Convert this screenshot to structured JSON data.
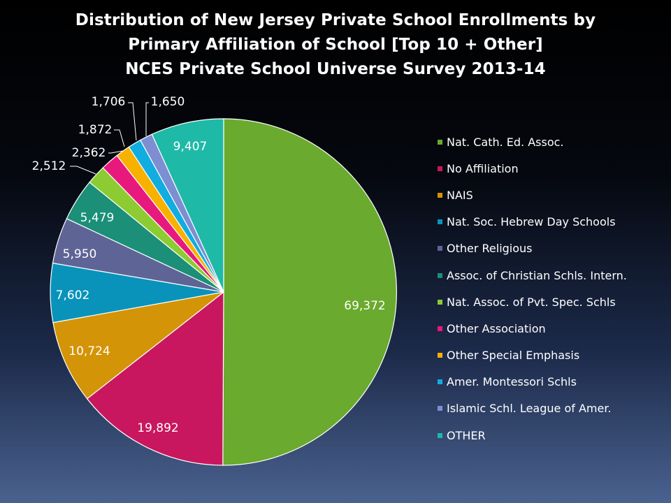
{
  "title": {
    "line1": "Distribution of New Jersey Private School Enrollments by",
    "line2": "Primary Affiliation of School [Top 10 + Other]",
    "line3": "NCES Private School Universe Survey 2013-14"
  },
  "chart_data": {
    "type": "pie",
    "title": "Distribution of New Jersey Private School Enrollments by Primary Affiliation of School [Top 10 + Other] NCES Private School Universe Survey 2013-14",
    "legend_position": "right",
    "slices": [
      {
        "name": "Nat. Cath. Ed. Assoc.",
        "value": 69372,
        "label": "69,372",
        "color": "#6aaa2e"
      },
      {
        "name": "No Affiliation",
        "value": 19892,
        "label": "19,892",
        "color": "#c8175e"
      },
      {
        "name": "NAIS",
        "value": 10724,
        "label": "10,724",
        "color": "#d49408"
      },
      {
        "name": "Nat. Soc. Hebrew Day Schools",
        "value": 7602,
        "label": "7,602",
        "color": "#0993bb"
      },
      {
        "name": "Other Religious",
        "value": 5950,
        "label": "5,950",
        "color": "#5e6496"
      },
      {
        "name": "Assoc. of Christian Schls. Intern.",
        "value": 5479,
        "label": "5,479",
        "color": "#1b8f78"
      },
      {
        "name": "Nat. Assoc. of Pvt. Spec. Schls",
        "value": 2512,
        "label": "2,512",
        "color": "#8ccc32"
      },
      {
        "name": "Other Association",
        "value": 2362,
        "label": "2,362",
        "color": "#e8197c"
      },
      {
        "name": "Other Special Emphasis",
        "value": 1872,
        "label": "1,872",
        "color": "#f9b100"
      },
      {
        "name": "Amer. Montessori Schls",
        "value": 1706,
        "label": "1,706",
        "color": "#11ace0"
      },
      {
        "name": "Islamic Schl. League of Amer.",
        "value": 1650,
        "label": "1,650",
        "color": "#7d8fd2"
      },
      {
        "name": "OTHER",
        "value": 9407,
        "label": "9,407",
        "color": "#1fb9a7"
      }
    ]
  }
}
